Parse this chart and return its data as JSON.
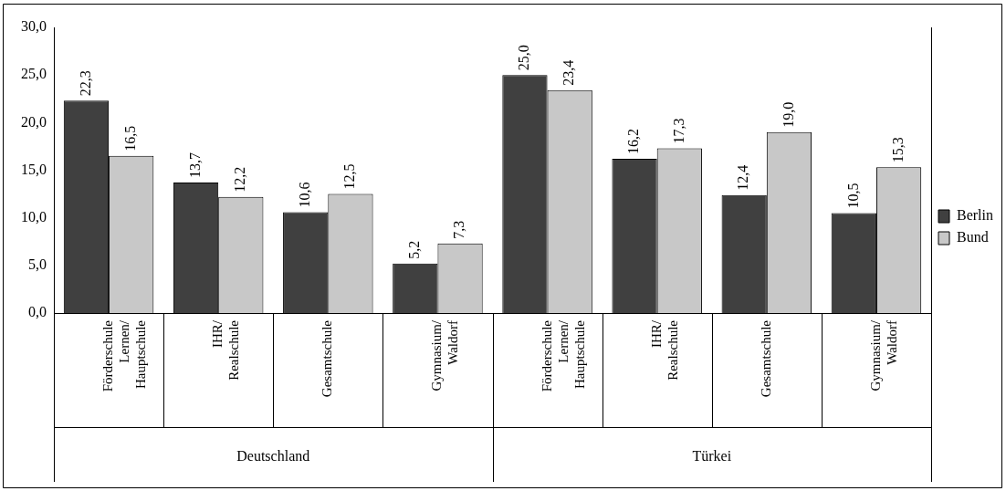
{
  "chart_data": {
    "type": "bar",
    "categories": [
      "Förderschule\nLernen/\nHauptschule",
      "IHR/\nRealschule",
      "Gesamtschule",
      "Gymnasium/\nWaldorf",
      "Förderschule\nLernen/\nHauptschule",
      "IHR/\nRealschule",
      "Gesamtschule",
      "Gymnasium/\nWaldorf"
    ],
    "series": [
      {
        "name": "Berlin",
        "color": "#404040",
        "values": [
          22.3,
          13.7,
          10.6,
          5.2,
          25.0,
          16.2,
          12.4,
          10.5
        ],
        "value_labels": [
          "22,3",
          "13,7",
          "10,6",
          "5,2",
          "25,0",
          "16,2",
          "12,4",
          "10,5"
        ]
      },
      {
        "name": "Bund",
        "color": "#c8c8c8",
        "values": [
          16.5,
          12.2,
          12.5,
          7.3,
          23.4,
          17.3,
          19.0,
          15.3
        ],
        "value_labels": [
          "16,5",
          "12,2",
          "12,5",
          "7,3",
          "23,4",
          "17,3",
          "19,0",
          "15,3"
        ]
      }
    ],
    "annotations": [
      "Deutschland",
      "Türkei"
    ],
    "ylim": [
      0,
      30
    ],
    "yticks": [
      {
        "value": 0,
        "label": "0,0"
      },
      {
        "value": 5,
        "label": "5,0"
      },
      {
        "value": 10,
        "label": "10,0"
      },
      {
        "value": 15,
        "label": "15,0"
      },
      {
        "value": 20,
        "label": "20,0"
      },
      {
        "value": 25,
        "label": "25,0"
      },
      {
        "value": 30,
        "label": "30,0"
      }
    ],
    "grid": false,
    "legend": "right"
  }
}
